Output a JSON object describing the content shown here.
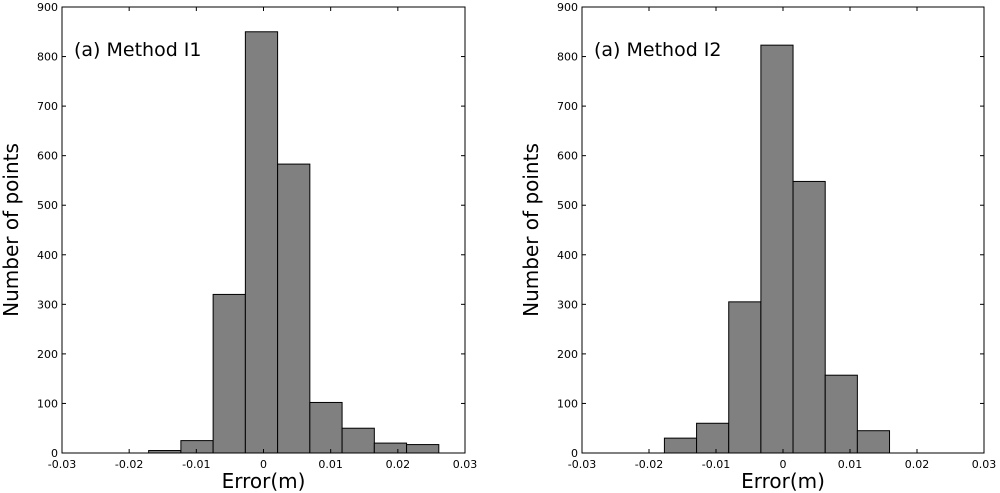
{
  "chart_data": [
    {
      "type": "bar",
      "annotation": "(a)  Method I1",
      "xlabel": "Error(m)",
      "ylabel": "Number of points",
      "xlim": [
        -0.03,
        0.03
      ],
      "ylim": [
        0,
        900
      ],
      "xticks": [
        "-0.03",
        "-0.02",
        "-0.01",
        "0",
        "0.01",
        "0.02",
        "0.03"
      ],
      "yticks": [
        "0",
        "100",
        "200",
        "300",
        "400",
        "500",
        "600",
        "700",
        "800",
        "900"
      ],
      "bin_width": 0.0048,
      "bin_centers": [
        -0.0147,
        -0.0099,
        -0.0051,
        -0.0003,
        0.0045,
        0.0093,
        0.0141,
        0.0189,
        0.0237
      ],
      "values": [
        5,
        25,
        320,
        850,
        583,
        102,
        50,
        20,
        17
      ]
    },
    {
      "type": "bar",
      "annotation": "(a)  Method I2",
      "xlabel": "Error(m)",
      "ylabel": "Number of points",
      "xlim": [
        -0.03,
        0.03
      ],
      "ylim": [
        0,
        900
      ],
      "xticks": [
        "-0.03",
        "-0.02",
        "-0.01",
        "0",
        "0.01",
        "0.02",
        "0.03"
      ],
      "yticks": [
        "0",
        "100",
        "200",
        "300",
        "400",
        "500",
        "600",
        "700",
        "800",
        "900"
      ],
      "bin_width": 0.0048,
      "bin_centers": [
        -0.0153,
        -0.0105,
        -0.0057,
        -0.0009,
        0.0039,
        0.0087,
        0.0135
      ],
      "values": [
        30,
        60,
        305,
        823,
        548,
        157,
        45
      ]
    }
  ]
}
